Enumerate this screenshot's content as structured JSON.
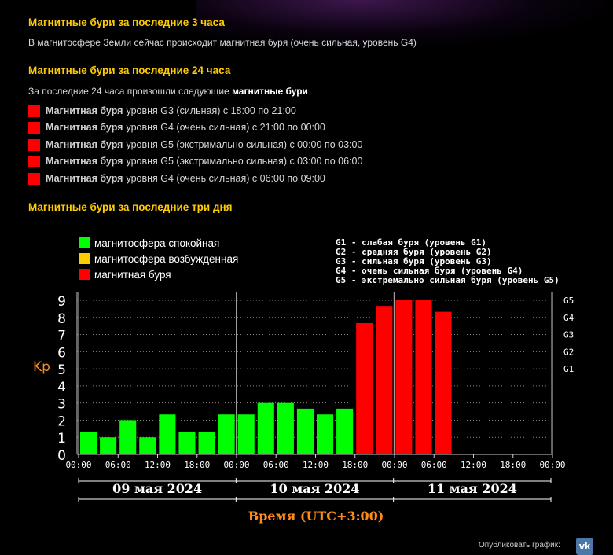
{
  "section1": {
    "title": "Магнитные бури за последние 3 часа",
    "text": "В магнитосфере Земли сейчас происходит магнитная буря (очень сильная, уровень G4)"
  },
  "section2": {
    "title": "Магнитные бури за последние 24 часа",
    "intro_prefix": "За последние 24 часа произошли следующие",
    "intro_bold": "магнитные бури",
    "storms": [
      {
        "bold": "Магнитная буря",
        "text": "уровня G3 (сильная) с 18:00 по 21:00"
      },
      {
        "bold": "Магнитная буря",
        "text": "уровня G4 (очень сильная) с 21:00 по 00:00"
      },
      {
        "bold": "Магнитная буря",
        "text": "уровня G5 (экстримально сильная) с 00:00 по 03:00"
      },
      {
        "bold": "Магнитная буря",
        "text": "уровня G5 (экстримально сильная) с 03:00 по 06:00"
      },
      {
        "bold": "Магнитная буря",
        "text": "уровня G4 (очень сильная) с 06:00 по 09:00"
      }
    ]
  },
  "section3": {
    "title": "Магнитные бури за последние три дня"
  },
  "chart_data": {
    "type": "bar",
    "legend": [
      {
        "label": "магнитосфера спокойная",
        "color": "#00ff00"
      },
      {
        "label": "магнитосфера возбужденная",
        "color": "#ffcc00"
      },
      {
        "label": "магнитная буря",
        "color": "#ff0000"
      }
    ],
    "g_legend": [
      "G1 - слабая буря (уровень G1)",
      "G2 - средняя буря (уровень G2)",
      "G3 - сильная буря (уровень G3)",
      "G4 - очень сильная буря (уровень G4)",
      "G5 - экстремально сильная буря (уровень G5)"
    ],
    "ylabel": "Kp",
    "ylim": [
      0,
      9
    ],
    "yticks": [
      "0",
      "1",
      "2",
      "3",
      "4",
      "5",
      "6",
      "7",
      "8",
      "9"
    ],
    "g_ticks": [
      {
        "label": "G1",
        "kp": 5
      },
      {
        "label": "G2",
        "kp": 6
      },
      {
        "label": "G3",
        "kp": 7
      },
      {
        "label": "G4",
        "kp": 8
      },
      {
        "label": "G5",
        "kp": 9
      }
    ],
    "xticks": [
      "00:00",
      "06:00",
      "12:00",
      "18:00",
      "00:00",
      "06:00",
      "12:00",
      "18:00",
      "00:00",
      "06:00",
      "12:00",
      "18:00",
      "00:00"
    ],
    "days": [
      "09 мая 2024",
      "10 мая 2024",
      "11 мая 2024"
    ],
    "xlabel": "Время (UTC+3:00)",
    "values": [
      1.33,
      1.0,
      2.0,
      1.0,
      2.33,
      1.33,
      1.33,
      2.33,
      2.33,
      3.0,
      3.0,
      2.67,
      2.33,
      2.67,
      7.67,
      8.67,
      9.0,
      9.0,
      8.33
    ],
    "colors": [
      "#00ff00",
      "#00ff00",
      "#00ff00",
      "#00ff00",
      "#00ff00",
      "#00ff00",
      "#00ff00",
      "#00ff00",
      "#00ff00",
      "#00ff00",
      "#00ff00",
      "#00ff00",
      "#00ff00",
      "#00ff00",
      "#ff0000",
      "#ff0000",
      "#ff0000",
      "#ff0000",
      "#ff0000"
    ],
    "bars_total": 24
  },
  "footer": {
    "text": "Опубликовать график:",
    "vk_label": "vk"
  }
}
